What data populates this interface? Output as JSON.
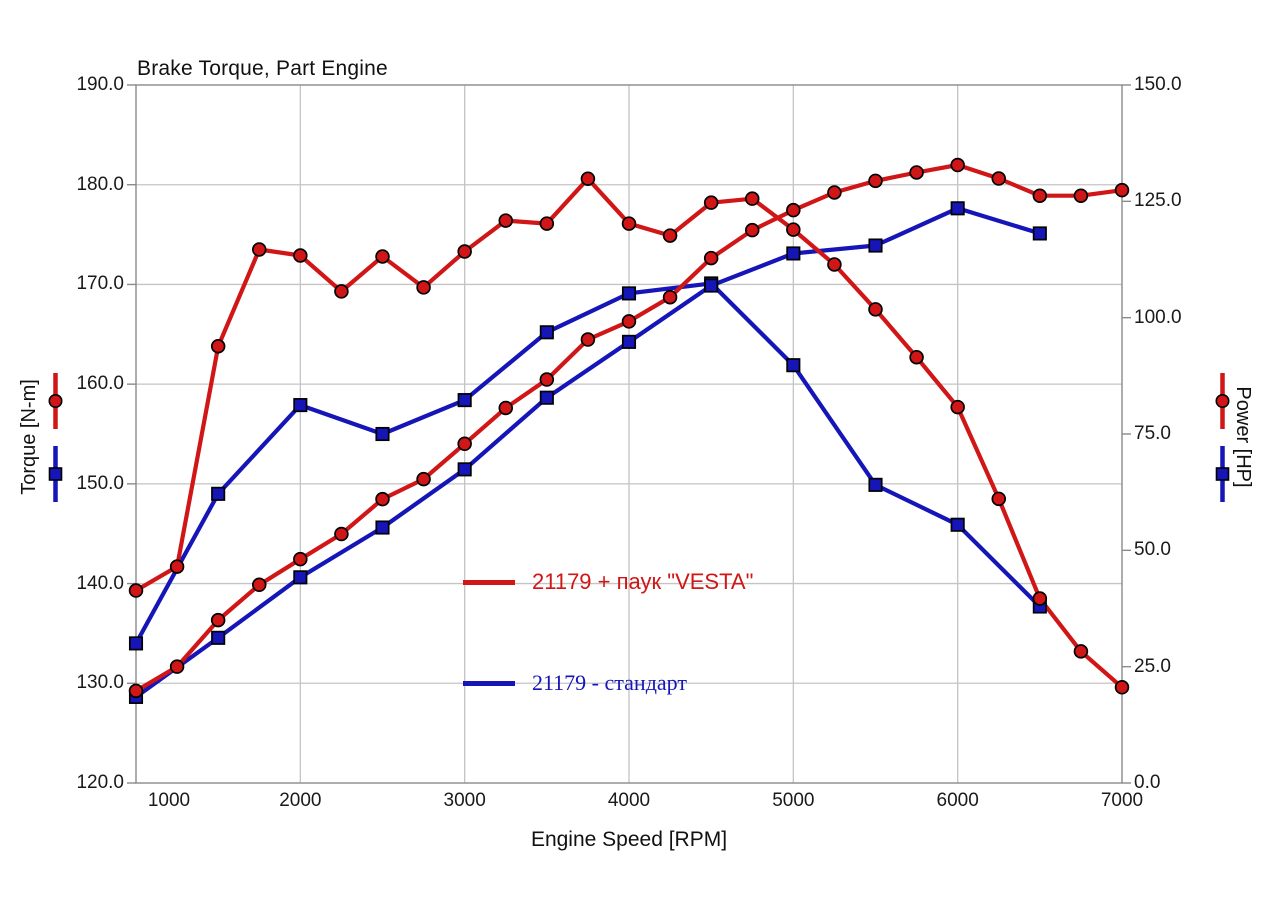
{
  "title": "Brake Torque, Part Engine",
  "colors": {
    "red": "#d01616",
    "blue": "#1515b8",
    "grid": "#c4c4c4",
    "border": "#8a8a8a",
    "marker_edge": "#000000",
    "text": "#111111"
  },
  "axes": {
    "x": {
      "label": "Engine Speed [RPM]",
      "min": 1000,
      "max": 7000,
      "tick_values": [
        1000,
        2000,
        3000,
        4000,
        5000,
        6000,
        7000
      ],
      "tick_labels": [
        "1000",
        "2000",
        "3000",
        "4000",
        "5000",
        "6000",
        "7000"
      ]
    },
    "y_left": {
      "label": "Torque [N-m]",
      "min": 120,
      "max": 190,
      "tick_values": [
        190,
        180,
        170,
        160,
        150,
        140,
        130,
        120
      ],
      "tick_labels": [
        "190.0",
        "180.0",
        "170.0",
        "160.0",
        "150.0",
        "140.0",
        "130.0",
        "120.0"
      ]
    },
    "y_right": {
      "label": "Power [HP]",
      "min": 0,
      "max": 150,
      "tick_values": [
        150,
        125,
        100,
        75,
        50,
        25,
        0
      ],
      "tick_labels": [
        "150.0",
        "125.0",
        "100.0",
        "75.0",
        "50.0",
        "25.0",
        "0.0"
      ]
    }
  },
  "legend": [
    {
      "label": "21179 + паук \"VESTA\"",
      "color": "#d01616"
    },
    {
      "label": "21179 - стандарт",
      "color": "#1515b8"
    }
  ],
  "chart_data": {
    "type": "line",
    "title": "Brake Torque, Part Engine",
    "xlabel": "Engine Speed [RPM]",
    "ylabel_left": "Torque [N-m]",
    "ylabel_right": "Power [HP]",
    "xlim": [
      1000,
      7000
    ],
    "ylim_left": [
      120,
      190
    ],
    "ylim_right": [
      0,
      150
    ],
    "grid": true,
    "series": [
      {
        "name": "torque-standard",
        "legend": "21179 - стандарт",
        "axis": "left",
        "unit": "N-m",
        "color": "#1515b8",
        "marker": "square",
        "x": [
          1000,
          1500,
          2000,
          2500,
          3000,
          3500,
          4000,
          4500,
          5000,
          5500,
          6000,
          6500
        ],
        "y": [
          134.0,
          149.0,
          157.9,
          155.0,
          158.4,
          165.2,
          169.1,
          170.1,
          161.9,
          149.9,
          145.9,
          137.7
        ]
      },
      {
        "name": "power-standard",
        "legend": "21179 - стандарт",
        "axis": "right",
        "unit": "HP",
        "color": "#1515b8",
        "marker": "square",
        "x": [
          1000,
          1500,
          2000,
          2500,
          3000,
          3500,
          4000,
          4500,
          5000,
          5500,
          6000,
          6500
        ],
        "y": [
          18.5,
          31.2,
          44.2,
          54.9,
          67.4,
          82.8,
          94.8,
          106.9,
          113.8,
          115.5,
          123.5,
          118.1
        ]
      },
      {
        "name": "torque-vesta",
        "legend": "21179 + паук \"VESTA\"",
        "axis": "left",
        "unit": "N-m",
        "color": "#d01616",
        "marker": "circle",
        "x": [
          1000,
          1250,
          1500,
          1750,
          2000,
          2250,
          2500,
          2750,
          3000,
          3250,
          3500,
          3750,
          4000,
          4250,
          4500,
          4750,
          5000,
          5250,
          5500,
          5750,
          6000,
          6250,
          6500,
          6750,
          7000
        ],
        "y": [
          139.3,
          141.7,
          163.8,
          173.5,
          172.9,
          169.3,
          172.8,
          169.7,
          173.3,
          176.4,
          176.1,
          180.6,
          176.1,
          174.9,
          178.2,
          178.6,
          175.5,
          172.0,
          167.5,
          162.7,
          157.7,
          148.5,
          138.5,
          133.2,
          129.6
        ]
      },
      {
        "name": "power-vesta",
        "legend": "21179 + паук \"VESTA\"",
        "axis": "right",
        "unit": "HP",
        "color": "#d01616",
        "marker": "circle",
        "x": [
          1000,
          1250,
          1500,
          1750,
          2000,
          2250,
          2500,
          2750,
          3000,
          3250,
          3500,
          3750,
          4000,
          4250,
          4500,
          4750,
          5000,
          5250,
          5500,
          5750,
          6000,
          6250,
          6500,
          6750,
          7000
        ],
        "y": [
          19.8,
          25.0,
          35.0,
          42.6,
          48.1,
          53.5,
          61.0,
          65.3,
          72.9,
          80.6,
          86.7,
          95.3,
          99.2,
          104.4,
          112.8,
          118.8,
          123.1,
          126.9,
          129.4,
          131.2,
          132.8,
          129.9,
          126.2,
          126.2,
          127.4
        ]
      }
    ]
  }
}
